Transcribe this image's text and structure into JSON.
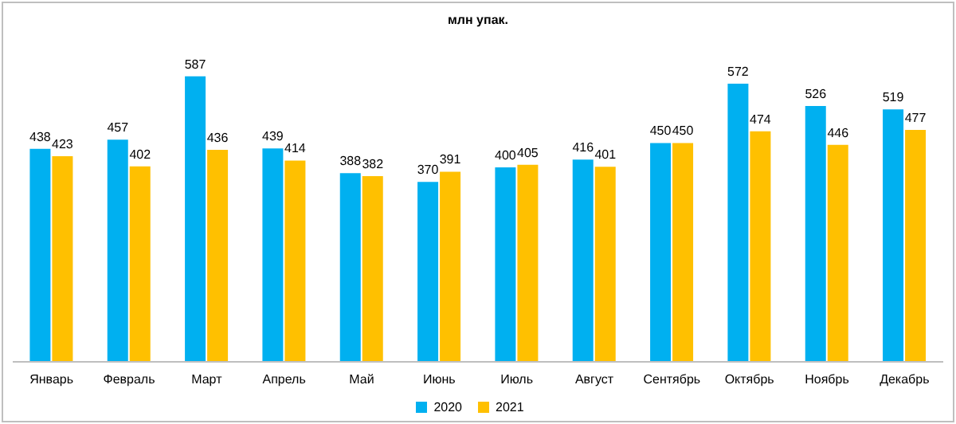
{
  "chart_data": {
    "type": "bar",
    "title": "млн упак.",
    "categories": [
      "Январь",
      "Февраль",
      "Март",
      "Апрель",
      "Май",
      "Июнь",
      "Июль",
      "Август",
      "Сентябрь",
      "Октябрь",
      "Ноябрь",
      "Декабрь"
    ],
    "series": [
      {
        "name": "2020",
        "color": "#00b0f0",
        "values": [
          438,
          457,
          587,
          439,
          388,
          370,
          400,
          416,
          450,
          572,
          526,
          519
        ]
      },
      {
        "name": "2021",
        "color": "#ffc000",
        "values": [
          423,
          402,
          436,
          414,
          382,
          391,
          405,
          401,
          450,
          474,
          446,
          477
        ]
      }
    ],
    "data_labels": true,
    "grid": false,
    "legend": "bottom"
  }
}
